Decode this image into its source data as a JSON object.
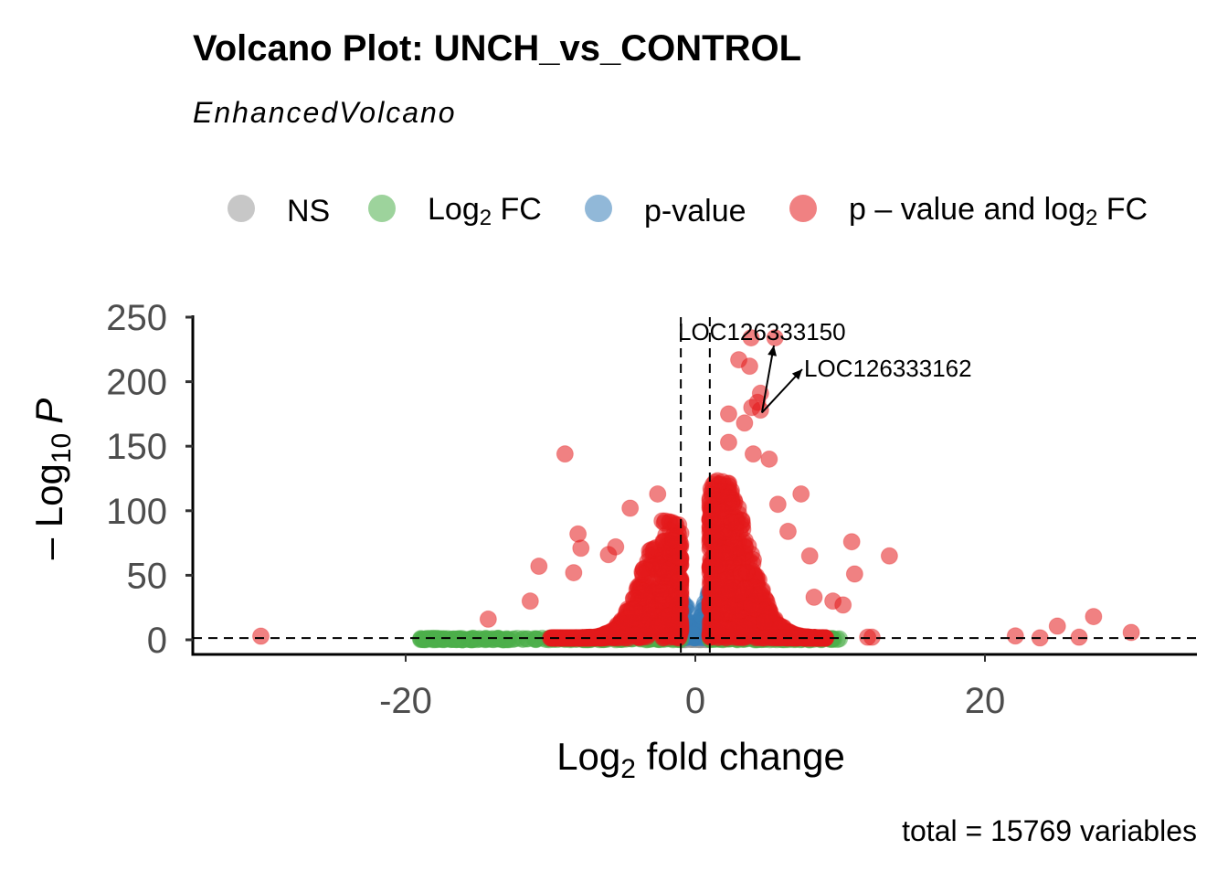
{
  "chart_data": {
    "type": "scatter",
    "title": "Volcano Plot: UNCH_vs_CONTROL",
    "subtitle": "EnhancedVolcano",
    "caption": "total = 15769 variables",
    "xlabel": "Log2 fold change",
    "xlabel_main": "Log",
    "xlabel_sub": "2",
    "xlabel_rest": " fold change",
    "ylabel_main": "– Log",
    "ylabel_sub": "10",
    "ylabel_rest": "P",
    "xlim": [
      -34.7,
      34.6
    ],
    "ylim": [
      -12,
      250
    ],
    "xticks": [
      -20,
      0,
      20
    ],
    "xtick_labels": [
      "-20",
      "0",
      "20"
    ],
    "yticks": [
      0,
      50,
      100,
      150,
      200,
      250
    ],
    "ytick_labels": [
      "0",
      "50",
      "100",
      "150",
      "200",
      "250"
    ],
    "fc_cutoff": 1,
    "p_cutoff_log10": 1.3,
    "grid": false,
    "legend_position": "top",
    "legend": [
      {
        "key": "NS",
        "label": "NS",
        "color": "#999999"
      },
      {
        "key": "FC",
        "label_main": "Log",
        "label_sub": "2",
        "label_rest": " FC",
        "color": "#4daf4a"
      },
      {
        "key": "P",
        "label": "p-value",
        "color": "#377eb8"
      },
      {
        "key": "FC_P",
        "label_main": "p – value and log",
        "label_sub": "2",
        "label_rest": " FC",
        "color": "#e41a1c"
      }
    ],
    "labels": [
      {
        "text": "LOC126333150",
        "x": 3.85,
        "y": 234
      },
      {
        "text": "LOC126333162",
        "x": 5.5,
        "y": 234
      }
    ],
    "highlight_points": [
      {
        "x": -30.0,
        "y": 2.8
      },
      {
        "x": -9.0,
        "y": 144
      },
      {
        "x": -4.5,
        "y": 102
      },
      {
        "x": -2.6,
        "y": 113
      },
      {
        "x": -8.1,
        "y": 82
      },
      {
        "x": -7.9,
        "y": 71
      },
      {
        "x": -10.8,
        "y": 57
      },
      {
        "x": -11.4,
        "y": 30
      },
      {
        "x": -14.3,
        "y": 16
      },
      {
        "x": -6.0,
        "y": 66
      },
      {
        "x": -5.5,
        "y": 72
      },
      {
        "x": -8.4,
        "y": 52
      },
      {
        "x": 3.85,
        "y": 234
      },
      {
        "x": 5.5,
        "y": 234
      },
      {
        "x": 3.0,
        "y": 217
      },
      {
        "x": 3.75,
        "y": 212
      },
      {
        "x": 4.5,
        "y": 191
      },
      {
        "x": 4.3,
        "y": 184
      },
      {
        "x": 3.9,
        "y": 180
      },
      {
        "x": 4.5,
        "y": 178
      },
      {
        "x": 2.3,
        "y": 175
      },
      {
        "x": 3.4,
        "y": 168
      },
      {
        "x": 2.3,
        "y": 153
      },
      {
        "x": 4.0,
        "y": 144
      },
      {
        "x": 5.1,
        "y": 140
      },
      {
        "x": 7.3,
        "y": 113
      },
      {
        "x": 5.7,
        "y": 105
      },
      {
        "x": 10.8,
        "y": 76
      },
      {
        "x": 13.4,
        "y": 65
      },
      {
        "x": 11.0,
        "y": 51
      },
      {
        "x": 7.9,
        "y": 65
      },
      {
        "x": 6.4,
        "y": 84
      },
      {
        "x": 22.1,
        "y": 3
      },
      {
        "x": 23.8,
        "y": 1.5
      },
      {
        "x": 25.0,
        "y": 10.6
      },
      {
        "x": 26.5,
        "y": 2
      },
      {
        "x": 27.5,
        "y": 18
      },
      {
        "x": 30.1,
        "y": 5.7
      },
      {
        "x": 11.9,
        "y": 2
      },
      {
        "x": 12.2,
        "y": 2
      },
      {
        "x": 10.2,
        "y": 27
      },
      {
        "x": 9.5,
        "y": 30
      },
      {
        "x": 8.2,
        "y": 33
      }
    ],
    "cloud": {
      "seed": 7,
      "red_left_n": 700,
      "red_right_n": 900,
      "green_n": 350,
      "blue_n": 80,
      "grey_n": 60
    }
  }
}
